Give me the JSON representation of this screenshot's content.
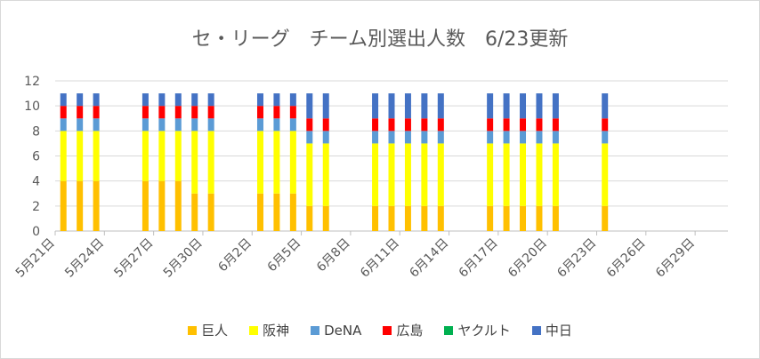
{
  "chart_data": {
    "type": "bar",
    "stacked": true,
    "title": "セ・リーグ　チーム別選出人数　6/23更新",
    "xlabel": "",
    "ylabel": "",
    "ylim": [
      0,
      12
    ],
    "yticks": [
      "0",
      "2",
      "4",
      "6",
      "8",
      "10",
      "12"
    ],
    "grid": "horizontal",
    "legend_position": "bottom",
    "x_start_date": "5/21",
    "x_end_date": "7/1",
    "x_tick_labels": [
      "5月21日",
      "5月24日",
      "5月27日",
      "5月30日",
      "6月2日",
      "6月5日",
      "6月8日",
      "6月11日",
      "6月14日",
      "6月17日",
      "6月20日",
      "6月23日",
      "6月26日",
      "6月29日"
    ],
    "dates": [
      "5/21",
      "5/22",
      "5/23",
      "5/26",
      "5/27",
      "5/28",
      "5/29",
      "5/30",
      "6/2",
      "6/3",
      "6/4",
      "6/5",
      "6/6",
      "6/9",
      "6/10",
      "6/11",
      "6/12",
      "6/13",
      "6/16",
      "6/17",
      "6/18",
      "6/19",
      "6/20",
      "6/23"
    ],
    "series": [
      {
        "name": "巨人",
        "color": "#FFC000",
        "values": [
          4,
          4,
          4,
          4,
          4,
          4,
          3,
          3,
          3,
          3,
          3,
          2,
          2,
          2,
          2,
          2,
          2,
          2,
          2,
          2,
          2,
          2,
          2,
          2
        ]
      },
      {
        "name": "阪神",
        "color": "#FFFF00",
        "values": [
          4,
          4,
          4,
          4,
          4,
          4,
          5,
          5,
          5,
          5,
          5,
          5,
          5,
          5,
          5,
          5,
          5,
          5,
          5,
          5,
          5,
          5,
          5,
          5
        ]
      },
      {
        "name": "DeNA",
        "color": "#5B9BD5",
        "values": [
          1,
          1,
          1,
          1,
          1,
          1,
          1,
          1,
          1,
          1,
          1,
          1,
          1,
          1,
          1,
          1,
          1,
          1,
          1,
          1,
          1,
          1,
          1,
          1
        ]
      },
      {
        "name": "広島",
        "color": "#FF0000",
        "values": [
          1,
          1,
          1,
          1,
          1,
          1,
          1,
          1,
          1,
          1,
          1,
          1,
          1,
          1,
          1,
          1,
          1,
          1,
          1,
          1,
          1,
          1,
          1,
          1
        ]
      },
      {
        "name": "ヤクルト",
        "color": "#00B050",
        "values": [
          0,
          0,
          0,
          0,
          0,
          0,
          0,
          0,
          0,
          0,
          0,
          0,
          0,
          0,
          0,
          0,
          0,
          0,
          0,
          0,
          0,
          0,
          0,
          0
        ]
      },
      {
        "name": "中日",
        "color": "#4472C4",
        "values": [
          1,
          1,
          1,
          1,
          1,
          1,
          1,
          1,
          1,
          1,
          1,
          2,
          2,
          2,
          2,
          2,
          2,
          2,
          2,
          2,
          2,
          2,
          2,
          2
        ]
      }
    ]
  }
}
